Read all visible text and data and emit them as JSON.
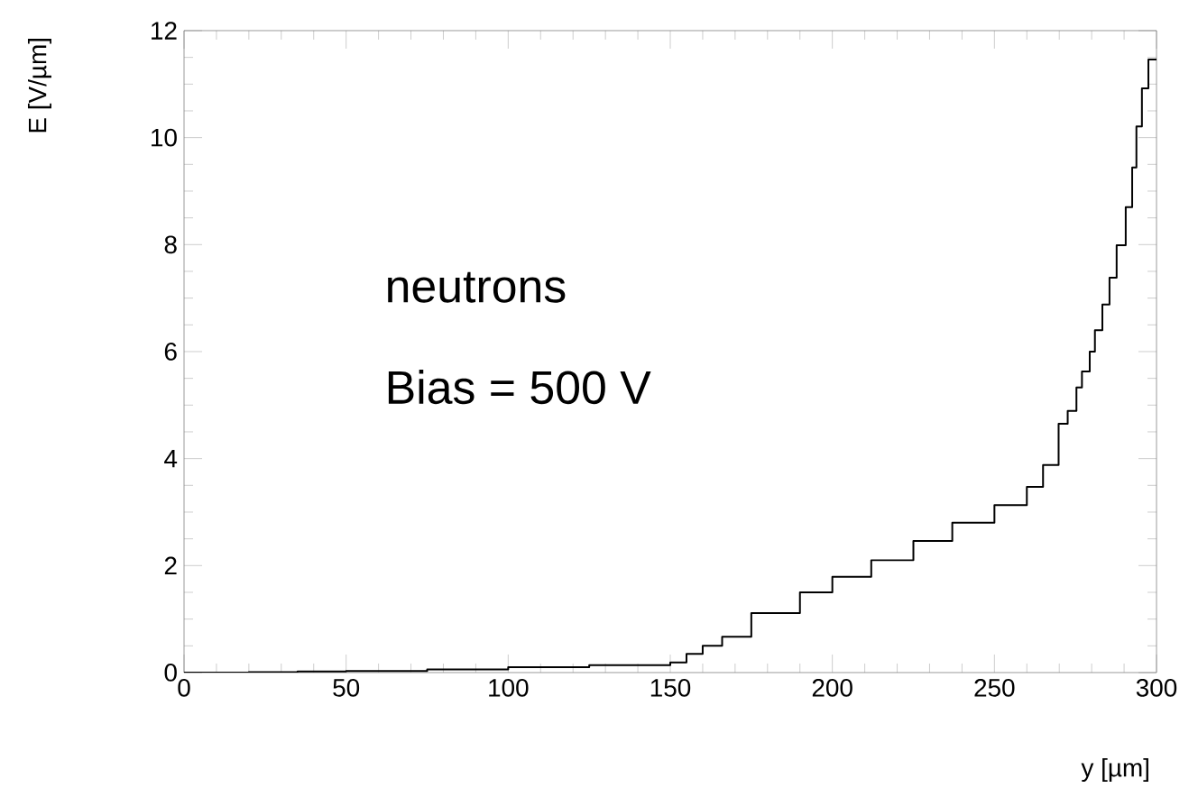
{
  "chart_data": {
    "type": "step",
    "xlabel": "y [µm]",
    "ylabel": "E [V/µm]",
    "annotations": [
      "neutrons",
      "Bias = 500 V"
    ],
    "x": [
      0,
      20,
      35,
      50,
      75,
      100,
      125,
      150,
      155,
      160,
      166,
      175,
      190,
      200,
      212,
      225,
      237,
      250,
      260,
      265,
      269.8,
      272.6,
      275.3,
      277,
      279.4,
      281,
      283.3,
      285.5,
      287.7,
      290.5,
      292.5,
      293.8,
      295.5,
      297.5,
      299,
      300
    ],
    "series": [
      {
        "color": "#000000",
        "values": [
          0,
          0.01,
          0.02,
          0.03,
          0.06,
          0.1,
          0.14,
          0.19,
          0.35,
          0.5,
          0.67,
          1.11,
          1.5,
          1.79,
          2.1,
          2.46,
          2.8,
          3.13,
          3.47,
          3.88,
          4.65,
          4.89,
          5.33,
          5.63,
          6.0,
          6.4,
          6.88,
          7.38,
          7.99,
          8.7,
          9.44,
          10.21,
          10.92,
          11.46,
          11.46,
          11.46
        ]
      }
    ],
    "xlim": [
      0,
      300
    ],
    "ylim": [
      0,
      12
    ],
    "xticks": [
      0,
      50,
      100,
      150,
      200,
      250,
      300
    ],
    "yticks": [
      0,
      2,
      4,
      6,
      8,
      10,
      12
    ]
  }
}
